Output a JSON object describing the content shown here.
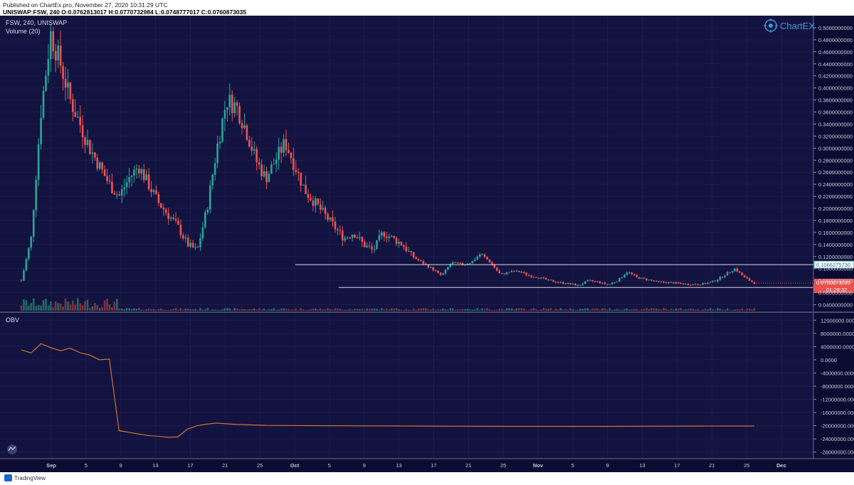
{
  "header": {
    "published": "Published on ChartEx.pro, November 27, 2020 10:31:29 UTC",
    "ohlc": "UNISWAP:FSW, 240  O:0.0762813017  H:0.0770732984  L:0.0748777017  C:0.0760873035"
  },
  "chart_data": {
    "type": "candlestick",
    "symbol_label": "FSW, 240, UNISWAP",
    "volume_label": "Volume (20)",
    "ylim": [
      0.03,
      0.52
    ],
    "y_ticks": [
      "0.5000000000",
      "0.4800000000",
      "0.4600000000",
      "0.4400000000",
      "0.4200000000",
      "0.4000000000",
      "0.3800000000",
      "0.3600000000",
      "0.3400000000",
      "0.3200000000",
      "0.3000000000",
      "0.2800000000",
      "0.2600000000",
      "0.2400000000",
      "0.2200000000",
      "0.2000000000",
      "0.1800000000",
      "0.1600000000",
      "0.1400000000",
      "0.1200000000",
      "0.1000000000",
      "0.0800000000",
      "0.0600000000",
      "0.0400000000"
    ],
    "x_ticks": [
      "Sep",
      "5",
      "9",
      "13",
      "17",
      "21",
      "25",
      "Oct",
      "5",
      "9",
      "13",
      "17",
      "21",
      "25",
      "Nov",
      "5",
      "9",
      "13",
      "17",
      "21",
      "25",
      "Dec"
    ],
    "price_series": [
      [
        0,
        0.08
      ],
      [
        1,
        0.15
      ],
      [
        2,
        0.36
      ],
      [
        3,
        0.49
      ],
      [
        4,
        0.44
      ],
      [
        5,
        0.38
      ],
      [
        6,
        0.34
      ],
      [
        7,
        0.3
      ],
      [
        8,
        0.27
      ],
      [
        9,
        0.24
      ],
      [
        10,
        0.22
      ],
      [
        11,
        0.25
      ],
      [
        12,
        0.27
      ],
      [
        13,
        0.24
      ],
      [
        14,
        0.21
      ],
      [
        15,
        0.19
      ],
      [
        16,
        0.17
      ],
      [
        17,
        0.14
      ],
      [
        18,
        0.13
      ],
      [
        19,
        0.2
      ],
      [
        20,
        0.3
      ],
      [
        21,
        0.38
      ],
      [
        22,
        0.37
      ],
      [
        23,
        0.33
      ],
      [
        24,
        0.28
      ],
      [
        25,
        0.25
      ],
      [
        26,
        0.28
      ],
      [
        27,
        0.31
      ],
      [
        28,
        0.27
      ],
      [
        29,
        0.23
      ],
      [
        30,
        0.21
      ],
      [
        31,
        0.19
      ],
      [
        32,
        0.17
      ],
      [
        33,
        0.15
      ],
      [
        34,
        0.16
      ],
      [
        35,
        0.14
      ],
      [
        36,
        0.13
      ],
      [
        37,
        0.16
      ],
      [
        38,
        0.15
      ],
      [
        39,
        0.14
      ],
      [
        40,
        0.12
      ],
      [
        41,
        0.11
      ],
      [
        42,
        0.1
      ],
      [
        43,
        0.088
      ],
      [
        44,
        0.11
      ],
      [
        45,
        0.107
      ],
      [
        46,
        0.11
      ],
      [
        47,
        0.125
      ],
      [
        48,
        0.11
      ],
      [
        49,
        0.09
      ],
      [
        50,
        0.095
      ],
      [
        51,
        0.095
      ],
      [
        52,
        0.088
      ],
      [
        53,
        0.085
      ],
      [
        54,
        0.08
      ],
      [
        55,
        0.077
      ],
      [
        56,
        0.075
      ],
      [
        57,
        0.072
      ],
      [
        58,
        0.08
      ],
      [
        59,
        0.078
      ],
      [
        60,
        0.073
      ],
      [
        61,
        0.08
      ],
      [
        62,
        0.095
      ],
      [
        63,
        0.085
      ],
      [
        64,
        0.082
      ],
      [
        65,
        0.078
      ],
      [
        66,
        0.077
      ],
      [
        67,
        0.076
      ],
      [
        68,
        0.074
      ],
      [
        69,
        0.074
      ],
      [
        70,
        0.075
      ],
      [
        71,
        0.08
      ],
      [
        72,
        0.09
      ],
      [
        73,
        0.1
      ],
      [
        74,
        0.085
      ],
      [
        75,
        0.076
      ]
    ],
    "x_domain": [
      0,
      75
    ],
    "levels": [
      {
        "label": "0.1066275730",
        "value": 0.106627573,
        "color": "#2a9ab0"
      },
      {
        "label": "0.0687413599",
        "value": 0.0687413599,
        "color": "#2a9ab0"
      }
    ],
    "last_price": {
      "label": "0.0760873035",
      "value": 0.0760873035,
      "color": "#e8514d"
    },
    "countdown": "01:28:32",
    "obv": {
      "label": "OBV",
      "ylim": [
        -30000000,
        14000000
      ],
      "y_ticks": [
        "12000000.0000",
        "8000000.0000",
        "4000000.0000",
        "0.0000",
        "-4000000.0000",
        "-8000000.0000",
        "-12000000.0000",
        "-16000000.0000",
        "-20000000.0000",
        "-24000000.0000",
        "-28000000.0000"
      ],
      "series": [
        [
          0,
          3000000
        ],
        [
          1,
          2000000
        ],
        [
          2,
          5000000
        ],
        [
          3,
          3500000
        ],
        [
          4,
          3000000
        ],
        [
          5,
          3200000
        ],
        [
          6,
          2500000
        ],
        [
          7,
          1000000
        ],
        [
          8,
          500000
        ],
        [
          9,
          200000
        ],
        [
          10,
          -21500000
        ],
        [
          11,
          -22000000
        ],
        [
          12,
          -22500000
        ],
        [
          13,
          -23000000
        ],
        [
          14,
          -23200000
        ],
        [
          15,
          -23500000
        ],
        [
          16,
          -23400000
        ],
        [
          17,
          -21000000
        ],
        [
          18,
          -20000000
        ],
        [
          19,
          -19500000
        ],
        [
          20,
          -19200000
        ],
        [
          21,
          -19400000
        ],
        [
          22,
          -19600000
        ],
        [
          23,
          -19700000
        ],
        [
          24,
          -19800000
        ],
        [
          25,
          -19900000
        ],
        [
          30,
          -20000000
        ],
        [
          40,
          -20100000
        ],
        [
          50,
          -20200000
        ],
        [
          60,
          -20200000
        ],
        [
          70,
          -20100000
        ],
        [
          75,
          -20100000
        ]
      ]
    },
    "colors": {
      "background": "#131340",
      "up": "#26a69a",
      "down": "#ef5350",
      "obv": "#e07a2e",
      "grid": "#1c1c50",
      "axis_text": "#c9c9d9",
      "panel_label": "#d6d6e4"
    }
  },
  "brand": {
    "name": "ChartEX",
    "icon": "chartex-logo-icon"
  },
  "footer": {
    "brand": "TradingView",
    "icon": "tradingview-logo-icon"
  }
}
